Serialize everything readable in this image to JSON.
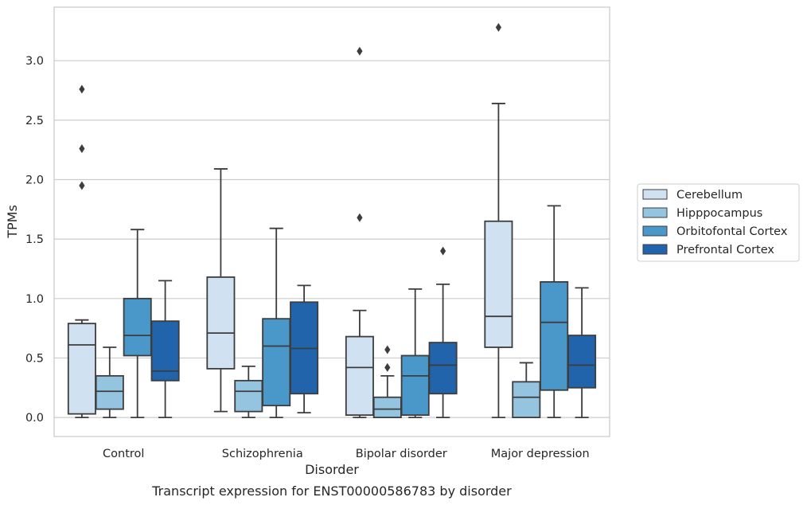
{
  "chart_data": {
    "type": "box",
    "caption": "Transcript expression for ENST00000586783 by disorder",
    "xlabel": "Disorder",
    "ylabel": "TPMs",
    "ylim": [
      -0.16,
      3.45
    ],
    "yticks": [
      0.0,
      0.5,
      1.0,
      1.5,
      2.0,
      2.5,
      3.0
    ],
    "ytick_labels": [
      "0.0",
      "0.5",
      "1.0",
      "1.5",
      "2.0",
      "2.5",
      "3.0"
    ],
    "grid": "horizontal",
    "legend_position": "right",
    "categories": [
      "Control",
      "Schizophrenia",
      "Bipolar disorder",
      "Major depression"
    ],
    "series": [
      {
        "name": "Cerebellum",
        "color": "#d0e1f2",
        "boxes": [
          {
            "whislo": 0.0,
            "q1": 0.03,
            "med": 0.61,
            "q3": 0.79,
            "whishi": 0.82,
            "fliers": [
              1.95,
              2.26,
              2.76
            ]
          },
          {
            "whislo": 0.05,
            "q1": 0.41,
            "med": 0.71,
            "q3": 1.18,
            "whishi": 2.09,
            "fliers": []
          },
          {
            "whislo": 0.0,
            "q1": 0.02,
            "med": 0.42,
            "q3": 0.68,
            "whishi": 0.9,
            "fliers": [
              1.68,
              3.08
            ]
          },
          {
            "whislo": 0.0,
            "q1": 0.59,
            "med": 0.85,
            "q3": 1.65,
            "whishi": 2.64,
            "fliers": [
              3.28
            ]
          }
        ]
      },
      {
        "name": "Hipppocampus",
        "color": "#94c4df",
        "boxes": [
          {
            "whislo": 0.0,
            "q1": 0.07,
            "med": 0.22,
            "q3": 0.35,
            "whishi": 0.59,
            "fliers": []
          },
          {
            "whislo": 0.0,
            "q1": 0.05,
            "med": 0.22,
            "q3": 0.31,
            "whishi": 0.43,
            "fliers": []
          },
          {
            "whislo": 0.0,
            "q1": 0.0,
            "med": 0.07,
            "q3": 0.17,
            "whishi": 0.35,
            "fliers": [
              0.42,
              0.57
            ]
          },
          {
            "whislo": 0.0,
            "q1": 0.0,
            "med": 0.17,
            "q3": 0.3,
            "whishi": 0.46,
            "fliers": []
          }
        ]
      },
      {
        "name": "Orbitofontal Cortex",
        "color": "#4a98c9",
        "boxes": [
          {
            "whislo": 0.0,
            "q1": 0.52,
            "med": 0.69,
            "q3": 1.0,
            "whishi": 1.58,
            "fliers": []
          },
          {
            "whislo": 0.0,
            "q1": 0.1,
            "med": 0.6,
            "q3": 0.83,
            "whishi": 1.59,
            "fliers": []
          },
          {
            "whislo": 0.0,
            "q1": 0.02,
            "med": 0.35,
            "q3": 0.52,
            "whishi": 1.08,
            "fliers": []
          },
          {
            "whislo": 0.0,
            "q1": 0.23,
            "med": 0.8,
            "q3": 1.14,
            "whishi": 1.78,
            "fliers": []
          }
        ]
      },
      {
        "name": "Prefrontal Cortex",
        "color": "#2164ab",
        "boxes": [
          {
            "whislo": 0.0,
            "q1": 0.31,
            "med": 0.39,
            "q3": 0.81,
            "whishi": 1.15,
            "fliers": []
          },
          {
            "whislo": 0.04,
            "q1": 0.2,
            "med": 0.58,
            "q3": 0.97,
            "whishi": 1.11,
            "fliers": []
          },
          {
            "whislo": 0.0,
            "q1": 0.2,
            "med": 0.44,
            "q3": 0.63,
            "whishi": 1.12,
            "fliers": [
              1.4
            ]
          },
          {
            "whislo": 0.0,
            "q1": 0.25,
            "med": 0.44,
            "q3": 0.69,
            "whishi": 1.09,
            "fliers": []
          }
        ]
      }
    ]
  }
}
